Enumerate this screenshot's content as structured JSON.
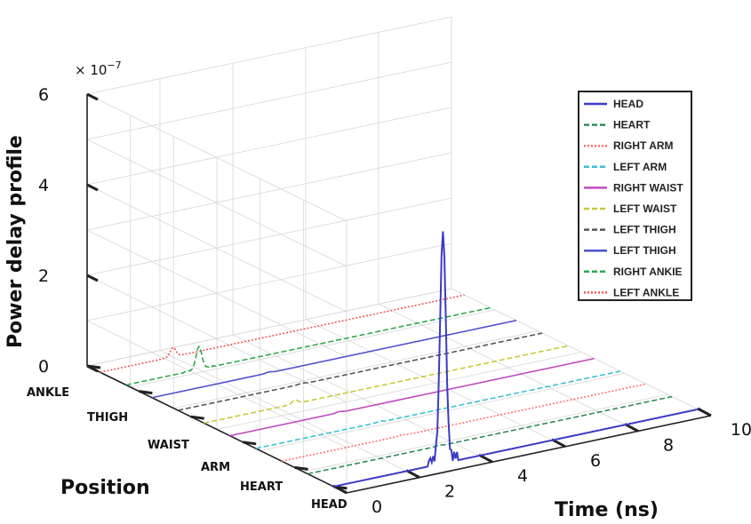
{
  "chart_data": {
    "type": "line",
    "title": "",
    "x_label": "Time (ns)",
    "y_label": "Position",
    "z_label": "Power delay profile",
    "z_exponent_label": "× 10",
    "z_exponent_power": "−7",
    "x_ticks": [
      "0",
      "2",
      "4",
      "6",
      "8",
      "10"
    ],
    "z_ticks": [
      "0",
      "2",
      "4",
      "6"
    ],
    "xlim": [
      0,
      10
    ],
    "zlim": [
      0,
      6
    ],
    "position_labels": [
      "HEAD",
      "HEART",
      "ARM",
      "WAIST",
      "THIGH",
      "ANKLE"
    ],
    "legend_position": "top-right",
    "grid": true,
    "series": [
      {
        "name": "HEAD",
        "color": "#3b3bc4",
        "dash": "solid",
        "peak_time": 3.0,
        "peak_value": 5.0
      },
      {
        "name": "HEART",
        "color": "#2e8b57",
        "dash": "dashed",
        "peak_time": 3.6,
        "peak_value": 0.02
      },
      {
        "name": "RIGHT ARM",
        "color": "#ff6f6f",
        "dash": "dotted",
        "peak_time": 3.3,
        "peak_value": 0.02
      },
      {
        "name": "LEFT ARM",
        "color": "#3bbfd3",
        "dash": "dashed",
        "peak_time": 3.4,
        "peak_value": 0.02
      },
      {
        "name": "RIGHT WAIST",
        "color": "#c04ac0",
        "dash": "solid",
        "peak_time": 3.0,
        "peak_value": 0.02
      },
      {
        "name": "LEFT WAIST",
        "color": "#c8c83a",
        "dash": "dashed",
        "peak_time": 2.5,
        "peak_value": 0.08
      },
      {
        "name": "LEFT THIGH",
        "color": "#555555",
        "dash": "dashed",
        "peak_time": 3.4,
        "peak_value": 0.02
      },
      {
        "name": "LEFT THIGH",
        "color": "#5050cc",
        "dash": "solid",
        "peak_time": 3.2,
        "peak_value": 0.02
      },
      {
        "name": "RIGHT ANKIE",
        "color": "#2ea84a",
        "dash": "dashed",
        "peak_time": 2.0,
        "peak_value": 0.5
      },
      {
        "name": "LEFT ANKLE",
        "color": "#ee5555",
        "dash": "dotted",
        "peak_time": 2.0,
        "peak_value": 0.2
      }
    ]
  }
}
